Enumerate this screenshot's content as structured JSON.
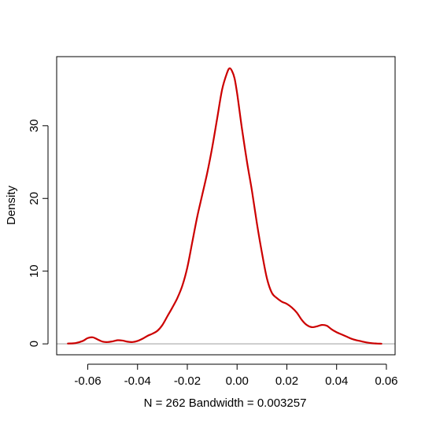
{
  "chart_data": {
    "type": "line",
    "title": "",
    "xlabel": "N = 262   Bandwidth = 0.003257",
    "ylabel": "Density",
    "xlim": [
      -0.0725,
      0.0635
    ],
    "ylim": [
      -1.5,
      39.5
    ],
    "xticks": [
      -0.06,
      -0.04,
      -0.02,
      0.0,
      0.02,
      0.04,
      0.06
    ],
    "xtick_labels": [
      "-0.06",
      "-0.04",
      "-0.02",
      "0.00",
      "0.02",
      "0.04",
      "0.06"
    ],
    "yticks": [
      0,
      10,
      20,
      30
    ],
    "ytick_labels": [
      "0",
      "10",
      "20",
      "30"
    ],
    "grid": false,
    "zero_line_color": "#bebebe",
    "series": [
      {
        "color": "#cc0000",
        "x": [
          -0.068,
          -0.065,
          -0.062,
          -0.06,
          -0.058,
          -0.056,
          -0.054,
          -0.052,
          -0.05,
          -0.048,
          -0.046,
          -0.044,
          -0.042,
          -0.04,
          -0.038,
          -0.036,
          -0.034,
          -0.032,
          -0.03,
          -0.028,
          -0.026,
          -0.024,
          -0.022,
          -0.02,
          -0.018,
          -0.016,
          -0.014,
          -0.012,
          -0.01,
          -0.008,
          -0.006,
          -0.004,
          -0.003,
          -0.002,
          -0.001,
          0.0,
          0.001,
          0.002,
          0.004,
          0.006,
          0.008,
          0.01,
          0.012,
          0.014,
          0.016,
          0.018,
          0.02,
          0.022,
          0.024,
          0.026,
          0.028,
          0.03,
          0.032,
          0.034,
          0.036,
          0.038,
          0.04,
          0.042,
          0.044,
          0.046,
          0.048,
          0.05,
          0.052,
          0.054,
          0.056,
          0.058
        ],
        "y": [
          0.05,
          0.1,
          0.4,
          0.8,
          0.9,
          0.6,
          0.3,
          0.25,
          0.35,
          0.5,
          0.45,
          0.3,
          0.25,
          0.4,
          0.7,
          1.1,
          1.4,
          1.8,
          2.6,
          3.8,
          5.0,
          6.3,
          8.0,
          10.5,
          14.0,
          17.5,
          20.5,
          23.5,
          27.0,
          31.0,
          35.0,
          37.3,
          37.9,
          37.5,
          36.5,
          34.5,
          32.0,
          29.5,
          25.0,
          21.0,
          16.5,
          12.5,
          9.0,
          7.0,
          6.3,
          5.8,
          5.5,
          5.0,
          4.3,
          3.3,
          2.6,
          2.3,
          2.4,
          2.6,
          2.5,
          2.0,
          1.6,
          1.3,
          1.0,
          0.7,
          0.5,
          0.35,
          0.2,
          0.1,
          0.05,
          0.02
        ]
      }
    ]
  }
}
